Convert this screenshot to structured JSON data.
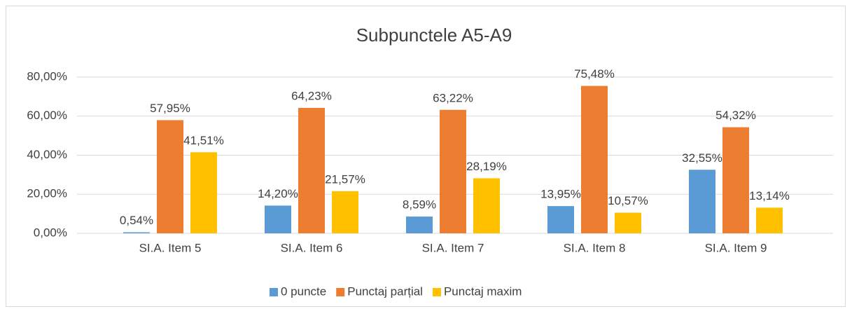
{
  "chart_data": {
    "type": "bar",
    "title": "Subpunctele A5-A9",
    "categories": [
      "SI.A. Item 5",
      "SI.A. Item 6",
      "SI.A. Item 7",
      "SI.A. Item 8",
      "SI.A. Item 9"
    ],
    "series": [
      {
        "name": "0 puncte",
        "color": "#5b9bd5",
        "values": [
          0.54,
          14.2,
          8.59,
          13.95,
          32.55
        ],
        "value_labels": [
          "0,54%",
          "14,20%",
          "8,59%",
          "13,95%",
          "32,55%"
        ]
      },
      {
        "name": "Punctaj parțial",
        "color": "#ed7d31",
        "values": [
          57.95,
          64.23,
          63.22,
          75.48,
          54.32
        ],
        "value_labels": [
          "57,95%",
          "64,23%",
          "63,22%",
          "75,48%",
          "54,32%"
        ]
      },
      {
        "name": "Punctaj maxim",
        "color": "#ffc000",
        "values": [
          41.51,
          21.57,
          28.19,
          10.57,
          13.14
        ],
        "value_labels": [
          "41,51%",
          "21,57%",
          "28,19%",
          "10,57%",
          "13,14%"
        ]
      }
    ],
    "ylim": [
      0,
      80
    ],
    "yticks": [
      {
        "value": 0,
        "label": "0,00%"
      },
      {
        "value": 20,
        "label": "20,00%"
      },
      {
        "value": 40,
        "label": "40,00%"
      },
      {
        "value": 60,
        "label": "60,00%"
      },
      {
        "value": 80,
        "label": "80,00%"
      }
    ],
    "grid": true,
    "legend": "bottom"
  }
}
